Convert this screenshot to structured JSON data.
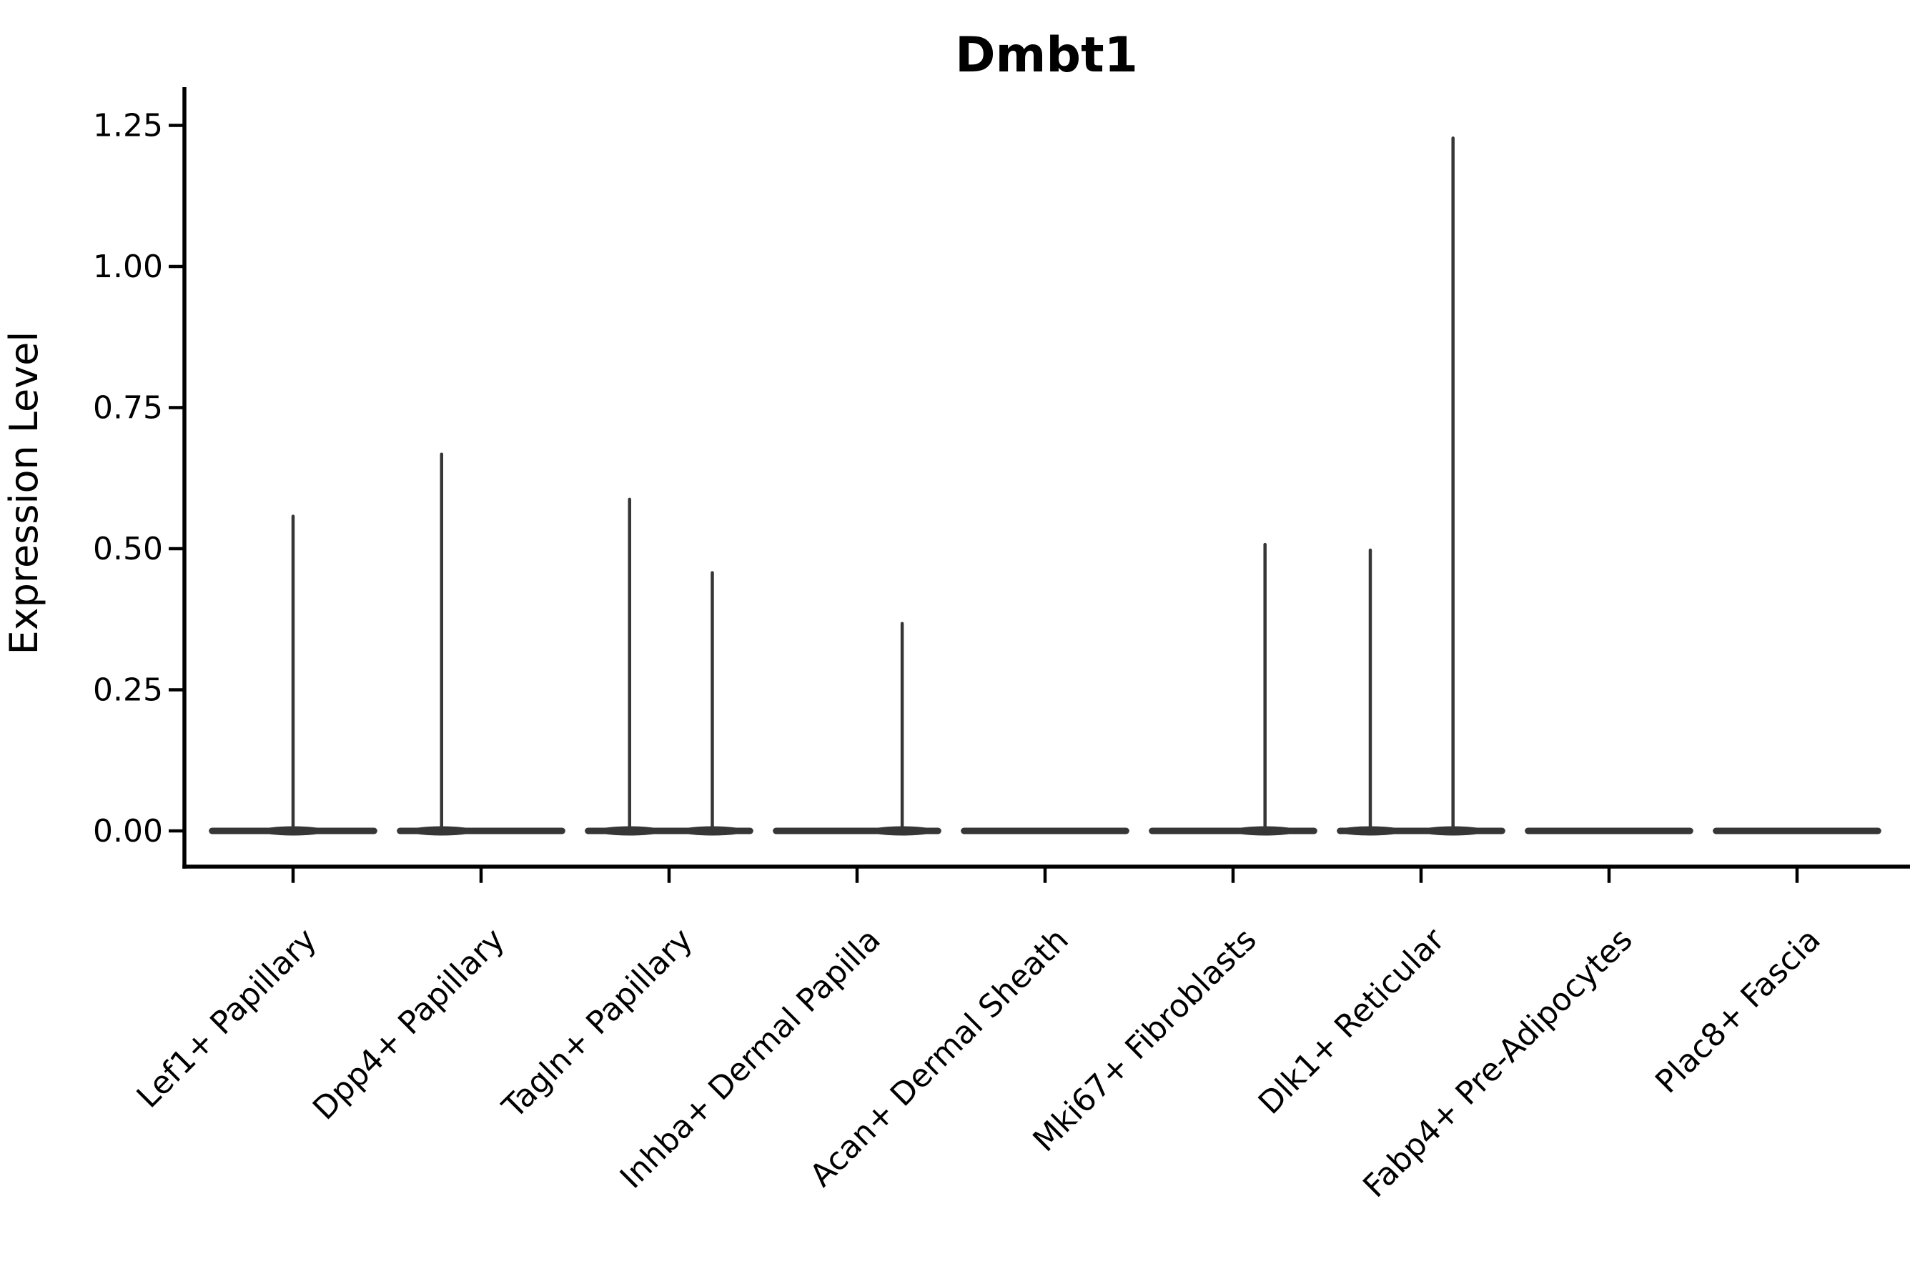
{
  "colors": {
    "background": "#ffffff",
    "axis": "#000000",
    "violin": "#363636",
    "text": "#000000"
  },
  "chart_data": {
    "type": "violin",
    "title": "Dmbt1",
    "xlabel": "",
    "ylabel": "Expression Level",
    "ylim": [
      -0.06,
      1.31
    ],
    "yticks": [
      0.0,
      0.25,
      0.5,
      0.75,
      1.0,
      1.25
    ],
    "ytick_labels": [
      "0.00",
      "0.25",
      "0.50",
      "0.75",
      "1.00",
      "1.25"
    ],
    "grid": false,
    "legend": "none",
    "x_tick_label_rotation_deg": 45,
    "violin_half_width_frac": 0.45,
    "categories": [
      {
        "label": "Lef1+ Papillary",
        "baseline_value": 0.0,
        "spikes": [
          {
            "offset_frac": 0.0,
            "value": 0.56
          }
        ]
      },
      {
        "label": "Dpp4+ Papillary",
        "baseline_value": 0.0,
        "spikes": [
          {
            "offset_frac": -0.21,
            "value": 0.67
          }
        ]
      },
      {
        "label": "Tagln+ Papillary",
        "baseline_value": 0.0,
        "spikes": [
          {
            "offset_frac": -0.21,
            "value": 0.59
          },
          {
            "offset_frac": 0.23,
            "value": 0.46
          }
        ]
      },
      {
        "label": "Inhba+ Dermal Papilla",
        "baseline_value": 0.0,
        "spikes": [
          {
            "offset_frac": 0.24,
            "value": 0.37
          }
        ]
      },
      {
        "label": "Acan+ Dermal Sheath",
        "baseline_value": 0.0,
        "spikes": []
      },
      {
        "label": "Mki67+ Fibroblasts",
        "baseline_value": 0.0,
        "spikes": [
          {
            "offset_frac": 0.17,
            "value": 0.51
          }
        ]
      },
      {
        "label": "Dlk1+ Reticular",
        "baseline_value": 0.0,
        "spikes": [
          {
            "offset_frac": -0.27,
            "value": 0.5
          },
          {
            "offset_frac": 0.17,
            "value": 1.23
          }
        ]
      },
      {
        "label": "Fabp4+ Pre-Adipocytes",
        "baseline_value": 0.0,
        "spikes": []
      },
      {
        "label": "Plac8+ Fascia",
        "baseline_value": 0.0,
        "spikes": []
      }
    ]
  }
}
